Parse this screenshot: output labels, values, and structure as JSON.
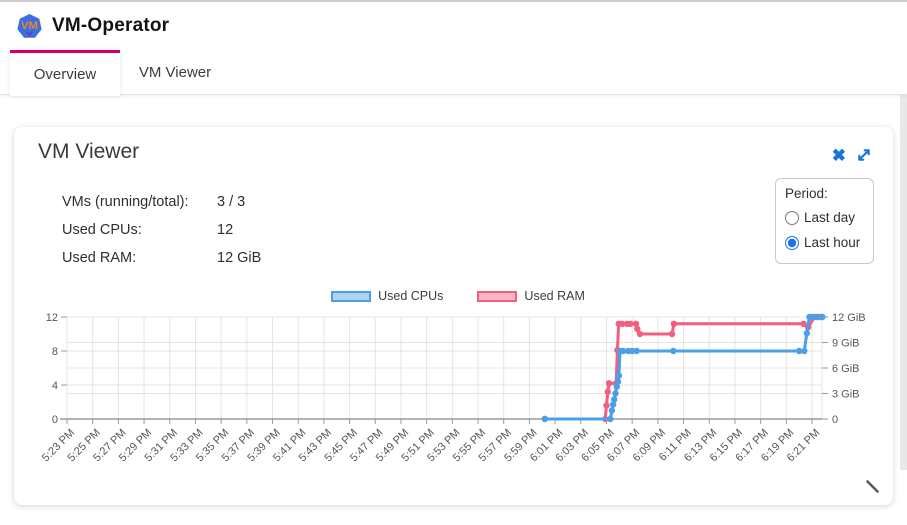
{
  "header": {
    "title": "VM-Operator",
    "logo": {
      "letters": "VM",
      "shape": "heptagon",
      "bg_color": "#3b6fe0",
      "letter_color": "#f08223",
      "accent_color": "#7a2fbf"
    }
  },
  "tabs": [
    {
      "label": "Overview",
      "active": true
    },
    {
      "label": "VM Viewer",
      "active": false
    }
  ],
  "accent_colors": {
    "active_tab_bar": "#cf0068",
    "icon_blue": "#1a73d9",
    "radio_blue": "#1a73e8"
  },
  "panel": {
    "title": "VM Viewer",
    "close_icon": "✖",
    "stats": [
      {
        "label": "VMs (running/total):",
        "value": "3 / 3"
      },
      {
        "label": "Used CPUs:",
        "value": "12"
      },
      {
        "label": "Used RAM:",
        "value": "12 GiB"
      }
    ],
    "period": {
      "label": "Period:",
      "options": [
        {
          "label": "Last day",
          "selected": false
        },
        {
          "label": "Last hour",
          "selected": true
        }
      ]
    }
  },
  "chart_data": {
    "type": "line",
    "title": "",
    "xlabel": "",
    "x_unit": "minutes after 5:23 PM (ticks every 2 min)",
    "x_range_minutes": [
      0,
      58.8
    ],
    "x_tick_labels": [
      "5:23 PM",
      "5:25 PM",
      "5:27 PM",
      "5:29 PM",
      "5:31 PM",
      "5:33 PM",
      "5:35 PM",
      "5:37 PM",
      "5:39 PM",
      "5:41 PM",
      "5:43 PM",
      "5:45 PM",
      "5:47 PM",
      "5:49 PM",
      "5:51 PM",
      "5:53 PM",
      "5:55 PM",
      "5:57 PM",
      "5:59 PM",
      "6:01 PM",
      "6:03 PM",
      "6:05 PM",
      "6:07 PM",
      "6:09 PM",
      "6:11 PM",
      "6:13 PM",
      "6:15 PM",
      "6:17 PM",
      "6:19 PM",
      "6:21 PM"
    ],
    "left_axis": {
      "ticks": [
        0,
        4,
        8,
        12
      ],
      "tick_labels": [
        "0",
        "4",
        "8",
        "12"
      ],
      "range": [
        0,
        12
      ]
    },
    "right_axis": {
      "ticks": [
        0,
        3,
        6,
        9,
        12
      ],
      "tick_labels": [
        "0",
        "3 GiB",
        "6 GiB",
        "9 GiB",
        "12 GiB"
      ],
      "range": [
        0,
        12
      ]
    },
    "hgrid_values": [
      3,
      4,
      6,
      8,
      9,
      12
    ],
    "grid": true,
    "legend_position": "top-center",
    "series": [
      {
        "name": "Used RAM",
        "axis": "right",
        "color": "#f25e80",
        "points": [
          [
            37.2,
            0
          ],
          [
            41.9,
            0
          ],
          [
            42.0,
            1.6
          ],
          [
            42.1,
            3.2
          ],
          [
            42.2,
            4.2
          ],
          [
            42.75,
            4.2
          ],
          [
            42.85,
            8.1
          ],
          [
            42.95,
            11.2
          ],
          [
            43.2,
            11.2
          ],
          [
            43.6,
            11.2
          ],
          [
            43.85,
            11.2
          ],
          [
            44.3,
            11.2
          ],
          [
            44.4,
            10.6
          ],
          [
            44.6,
            10.0
          ],
          [
            47.1,
            10.0
          ],
          [
            47.25,
            11.2
          ],
          [
            57.35,
            11.2
          ],
          [
            57.7,
            10.8
          ],
          [
            58.2,
            12
          ],
          [
            58.45,
            12
          ],
          [
            58.7,
            12
          ]
        ]
      },
      {
        "name": "Used CPUs",
        "axis": "left",
        "color": "#4b9fe6",
        "points": [
          [
            37.2,
            0
          ],
          [
            42.3,
            0
          ],
          [
            42.42,
            1
          ],
          [
            42.52,
            1.7
          ],
          [
            42.6,
            2.3
          ],
          [
            42.7,
            3
          ],
          [
            42.8,
            3.8
          ],
          [
            42.9,
            4.4
          ],
          [
            42.97,
            5.1
          ],
          [
            43.05,
            8
          ],
          [
            43.3,
            8
          ],
          [
            43.7,
            8
          ],
          [
            44.0,
            8
          ],
          [
            44.35,
            8
          ],
          [
            47.2,
            8
          ],
          [
            57.0,
            8
          ],
          [
            57.4,
            8
          ],
          [
            57.6,
            10.1
          ],
          [
            57.8,
            12
          ],
          [
            58.05,
            12
          ],
          [
            58.4,
            12
          ],
          [
            58.8,
            12
          ]
        ]
      }
    ],
    "legend_order": [
      "Used CPUs",
      "Used RAM"
    ]
  }
}
